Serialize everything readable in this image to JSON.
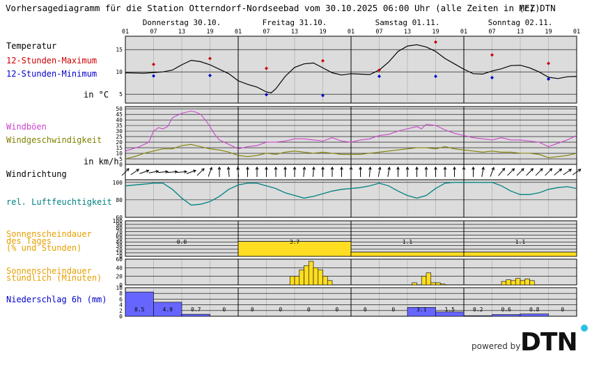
{
  "header": {
    "title": "Vorhersagediagramm für die Station Otterndorf-Nordseebad vom 30.10.2025 06:00 Uhr (alle Zeiten in MEZ)",
    "copyright": "(c) DTN"
  },
  "days": [
    "Donnerstag 30.10.",
    "Freitag 31.10.",
    "Samstag 01.11.",
    "Sonntag 02.11."
  ],
  "hour_ticks": [
    "01",
    "07",
    "13",
    "19",
    "01",
    "07",
    "13",
    "19",
    "01",
    "07",
    "13",
    "19",
    "01",
    "07",
    "13",
    "19",
    "01"
  ],
  "labels": {
    "temp_title": "Temperatur",
    "tmax": "12-Stunden-Maximum",
    "tmin": "12-Stunden-Minimum",
    "temp_unit": "in °C",
    "gust": "Windböen",
    "wind": "Windgeschwindigkeit",
    "wind_unit": "in km/h",
    "winddir": "Windrichtung",
    "rh": "rel. Luftfeuchtigkeit",
    "sun_day_1": "Sonnenscheindauer",
    "sun_day_2": "des Tages",
    "sun_day_3": "(% und Stunden)",
    "sun_hour_1": "Sonnenscheindauer",
    "sun_hour_2": "stündlich (Minuten)",
    "precip": "Niederschlag 6h (mm)"
  },
  "footer": {
    "powered_by": "powered by",
    "brand": "DTN"
  },
  "colors": {
    "panel_bg": "#dcdcdc",
    "temp": "#000000",
    "tmax": "#cc0000",
    "tmin": "#0000cc",
    "gust": "#cc44cc",
    "wind": "#808000",
    "rh": "#008080",
    "sun": "#ffdd22",
    "precip": "#6666ff",
    "label_gust": "#cc44cc",
    "label_wind": "#808000",
    "label_rh": "#008080",
    "label_sun": "#e6a000",
    "label_precip": "#0000cc",
    "label_tmax": "#cc0000",
    "label_tmin": "#0000cc"
  },
  "chart_data": [
    {
      "type": "line",
      "id": "temperature",
      "x_unit": "hours since 30.10. 01:00",
      "ylim": [
        3,
        18
      ],
      "yticks": [
        5,
        10,
        15
      ],
      "series": [
        {
          "points": [
            [
              0,
              9.8
            ],
            [
              4,
              9.7
            ],
            [
              8,
              10.0
            ],
            [
              10,
              10.4
            ],
            [
              12,
              11.6
            ],
            [
              14,
              12.6
            ],
            [
              16,
              12.3
            ],
            [
              18,
              11.6
            ],
            [
              20,
              10.6
            ],
            [
              22,
              9.6
            ],
            [
              24,
              8.0
            ],
            [
              26,
              7.2
            ],
            [
              28,
              6.6
            ],
            [
              30,
              5.5
            ],
            [
              31,
              5.3
            ],
            [
              32,
              6.2
            ],
            [
              34,
              9.0
            ],
            [
              36,
              11.0
            ],
            [
              38,
              11.8
            ],
            [
              40,
              12.0
            ],
            [
              42,
              10.9
            ],
            [
              44,
              9.8
            ],
            [
              46,
              9.3
            ],
            [
              48,
              9.6
            ],
            [
              52,
              9.4
            ],
            [
              54,
              10.4
            ],
            [
              56,
              12.2
            ],
            [
              58,
              14.6
            ],
            [
              60,
              15.8
            ],
            [
              62,
              16.1
            ],
            [
              64,
              15.6
            ],
            [
              66,
              14.6
            ],
            [
              68,
              13.0
            ],
            [
              70,
              11.8
            ],
            [
              72,
              10.6
            ],
            [
              74,
              9.6
            ],
            [
              76,
              9.5
            ],
            [
              78,
              10.2
            ],
            [
              80,
              10.7
            ],
            [
              82,
              11.4
            ],
            [
              84,
              11.5
            ],
            [
              86,
              10.9
            ],
            [
              88,
              10.0
            ],
            [
              90,
              8.8
            ],
            [
              92,
              8.5
            ],
            [
              94,
              8.9
            ],
            [
              96,
              9.0
            ]
          ]
        }
      ],
      "tmax": [
        [
          6,
          11.7
        ],
        [
          18,
          13.0
        ],
        [
          30,
          10.8
        ],
        [
          42,
          12.5
        ],
        [
          54,
          10.4
        ],
        [
          66,
          16.7
        ],
        [
          78,
          13.8
        ],
        [
          90,
          11.9
        ]
      ],
      "tmin": [
        [
          6,
          9.1
        ],
        [
          18,
          9.2
        ],
        [
          30,
          4.9
        ],
        [
          42,
          4.7
        ],
        [
          54,
          9.0
        ],
        [
          66,
          9.0
        ],
        [
          78,
          8.7
        ],
        [
          90,
          8.4
        ]
      ]
    },
    {
      "type": "line",
      "id": "wind",
      "ylim": [
        0,
        52
      ],
      "yticks": [
        0,
        5,
        10,
        15,
        20,
        25,
        30,
        35,
        40,
        45,
        50
      ],
      "series": [
        {
          "name": "Windböen",
          "points": [
            [
              0,
              12
            ],
            [
              3,
              16
            ],
            [
              5,
              20
            ],
            [
              6,
              30
            ],
            [
              7,
              33
            ],
            [
              8,
              32
            ],
            [
              9,
              34
            ],
            [
              10,
              42
            ],
            [
              12,
              46
            ],
            [
              14,
              48
            ],
            [
              15,
              47
            ],
            [
              16,
              45
            ],
            [
              17,
              40
            ],
            [
              18,
              34
            ],
            [
              19,
              27
            ],
            [
              20,
              22
            ],
            [
              22,
              18
            ],
            [
              24,
              14
            ],
            [
              26,
              16
            ],
            [
              28,
              17
            ],
            [
              30,
              20
            ],
            [
              32,
              20
            ],
            [
              34,
              21
            ],
            [
              36,
              23
            ],
            [
              38,
              23
            ],
            [
              40,
              22
            ],
            [
              42,
              21
            ],
            [
              44,
              24
            ],
            [
              46,
              21
            ],
            [
              48,
              20
            ],
            [
              50,
              22
            ],
            [
              52,
              23
            ],
            [
              54,
              26
            ],
            [
              56,
              27
            ],
            [
              58,
              30
            ],
            [
              60,
              32
            ],
            [
              62,
              34
            ],
            [
              63,
              32
            ],
            [
              64,
              36
            ],
            [
              66,
              35
            ],
            [
              68,
              31
            ],
            [
              70,
              28
            ],
            [
              72,
              26
            ],
            [
              74,
              24
            ],
            [
              76,
              23
            ],
            [
              78,
              22
            ],
            [
              80,
              24
            ],
            [
              82,
              22
            ],
            [
              84,
              22
            ],
            [
              86,
              21
            ],
            [
              88,
              20
            ],
            [
              90,
              16
            ],
            [
              92,
              19
            ],
            [
              94,
              22
            ],
            [
              96,
              26
            ]
          ]
        },
        {
          "name": "Windgeschwindigkeit",
          "points": [
            [
              0,
              5
            ],
            [
              2,
              7
            ],
            [
              4,
              10
            ],
            [
              6,
              12
            ],
            [
              8,
              14
            ],
            [
              10,
              14
            ],
            [
              12,
              17
            ],
            [
              14,
              18
            ],
            [
              16,
              16
            ],
            [
              18,
              14
            ],
            [
              20,
              13
            ],
            [
              22,
              11
            ],
            [
              24,
              8
            ],
            [
              26,
              7
            ],
            [
              28,
              8
            ],
            [
              30,
              10
            ],
            [
              32,
              9
            ],
            [
              34,
              11
            ],
            [
              36,
              12
            ],
            [
              38,
              11
            ],
            [
              40,
              10
            ],
            [
              42,
              11
            ],
            [
              44,
              10
            ],
            [
              46,
              9
            ],
            [
              48,
              9
            ],
            [
              50,
              9
            ],
            [
              52,
              10
            ],
            [
              54,
              11
            ],
            [
              56,
              12
            ],
            [
              58,
              13
            ],
            [
              60,
              14
            ],
            [
              62,
              15
            ],
            [
              64,
              15
            ],
            [
              66,
              14
            ],
            [
              68,
              16
            ],
            [
              70,
              14
            ],
            [
              72,
              13
            ],
            [
              74,
              12
            ],
            [
              76,
              11
            ],
            [
              78,
              12
            ],
            [
              80,
              11
            ],
            [
              82,
              11
            ],
            [
              84,
              10
            ],
            [
              86,
              10
            ],
            [
              88,
              9
            ],
            [
              90,
              6
            ],
            [
              92,
              7
            ],
            [
              94,
              8
            ],
            [
              96,
              10
            ]
          ]
        }
      ]
    },
    {
      "type": "line",
      "id": "wind_direction",
      "arrow_angles_deg": [
        225,
        235,
        250,
        260,
        265,
        265,
        265,
        250,
        225,
        200,
        180,
        175,
        175,
        180,
        180,
        180,
        180,
        180,
        180,
        185,
        185,
        180,
        180,
        180,
        180,
        180,
        185,
        190,
        190,
        180,
        180,
        180,
        180,
        180,
        180,
        180,
        180,
        180,
        190,
        200,
        220,
        225,
        225,
        225,
        225,
        225,
        230,
        235,
        235
      ]
    },
    {
      "type": "line",
      "id": "humidity",
      "ylim": [
        60,
        103
      ],
      "yticks": [
        60,
        80,
        100
      ],
      "series": [
        {
          "points": [
            [
              0,
              96
            ],
            [
              4,
              98
            ],
            [
              6,
              99
            ],
            [
              8,
              99
            ],
            [
              10,
              92
            ],
            [
              12,
              82
            ],
            [
              14,
              74
            ],
            [
              16,
              75
            ],
            [
              18,
              78
            ],
            [
              20,
              84
            ],
            [
              22,
              92
            ],
            [
              24,
              97
            ],
            [
              26,
              99
            ],
            [
              28,
              99
            ],
            [
              30,
              96
            ],
            [
              32,
              93
            ],
            [
              34,
              88
            ],
            [
              36,
              85
            ],
            [
              38,
              82
            ],
            [
              40,
              84
            ],
            [
              42,
              87
            ],
            [
              44,
              90
            ],
            [
              46,
              92
            ],
            [
              48,
              93
            ],
            [
              50,
              94
            ],
            [
              52,
              96
            ],
            [
              54,
              99
            ],
            [
              56,
              96
            ],
            [
              58,
              90
            ],
            [
              60,
              85
            ],
            [
              62,
              82
            ],
            [
              64,
              85
            ],
            [
              66,
              93
            ],
            [
              68,
              99
            ],
            [
              70,
              100
            ],
            [
              72,
              100
            ],
            [
              74,
              100
            ],
            [
              76,
              100
            ],
            [
              78,
              100
            ],
            [
              80,
              96
            ],
            [
              82,
              90
            ],
            [
              84,
              86
            ],
            [
              86,
              86
            ],
            [
              88,
              88
            ],
            [
              90,
              92
            ],
            [
              92,
              94
            ],
            [
              94,
              95
            ],
            [
              96,
              93
            ]
          ]
        }
      ]
    },
    {
      "type": "bar",
      "id": "sun_daily",
      "ylim": [
        0,
        100
      ],
      "yticks": [
        0,
        10,
        20,
        30,
        40,
        50,
        60,
        70,
        80,
        90,
        100
      ],
      "categories": [
        "Donnerstag 30.10.",
        "Freitag 31.10.",
        "Samstag 01.11.",
        "Sonntag 02.11."
      ],
      "values": [
        0,
        42,
        12,
        12
      ],
      "value_labels": [
        "0.0",
        "3.7",
        "1.1",
        "1.1"
      ]
    },
    {
      "type": "bar",
      "id": "sun_hourly",
      "ylim": [
        0,
        60
      ],
      "yticks": [
        0,
        20,
        40,
        60
      ],
      "bars": [
        [
          35,
          20
        ],
        [
          36,
          20
        ],
        [
          37,
          35
        ],
        [
          38,
          45
        ],
        [
          39,
          55
        ],
        [
          40,
          40
        ],
        [
          41,
          35
        ],
        [
          42,
          20
        ],
        [
          43,
          10
        ],
        [
          61,
          5
        ],
        [
          63,
          20
        ],
        [
          64,
          28
        ],
        [
          65,
          5
        ],
        [
          66,
          5
        ],
        [
          67,
          2
        ],
        [
          80,
          8
        ],
        [
          81,
          12
        ],
        [
          82,
          10
        ],
        [
          83,
          15
        ],
        [
          84,
          10
        ],
        [
          85,
          14
        ],
        [
          86,
          10
        ]
      ]
    },
    {
      "type": "bar",
      "id": "precip",
      "ylim": [
        0,
        10
      ],
      "yticks": [
        0,
        2,
        4,
        6,
        8,
        10
      ],
      "values": [
        8.5,
        4.9,
        0.7,
        0,
        0,
        0,
        0,
        0,
        0,
        0,
        3.1,
        1.5,
        0.2,
        0.6,
        0.8,
        0
      ],
      "value_labels": [
        "8.5",
        "4.9",
        "0.7",
        "0",
        "0",
        "0",
        "0",
        "0",
        "0",
        "0",
        "3.1",
        "1.5",
        "0.2",
        "0.6",
        "0.8",
        "0"
      ]
    }
  ]
}
